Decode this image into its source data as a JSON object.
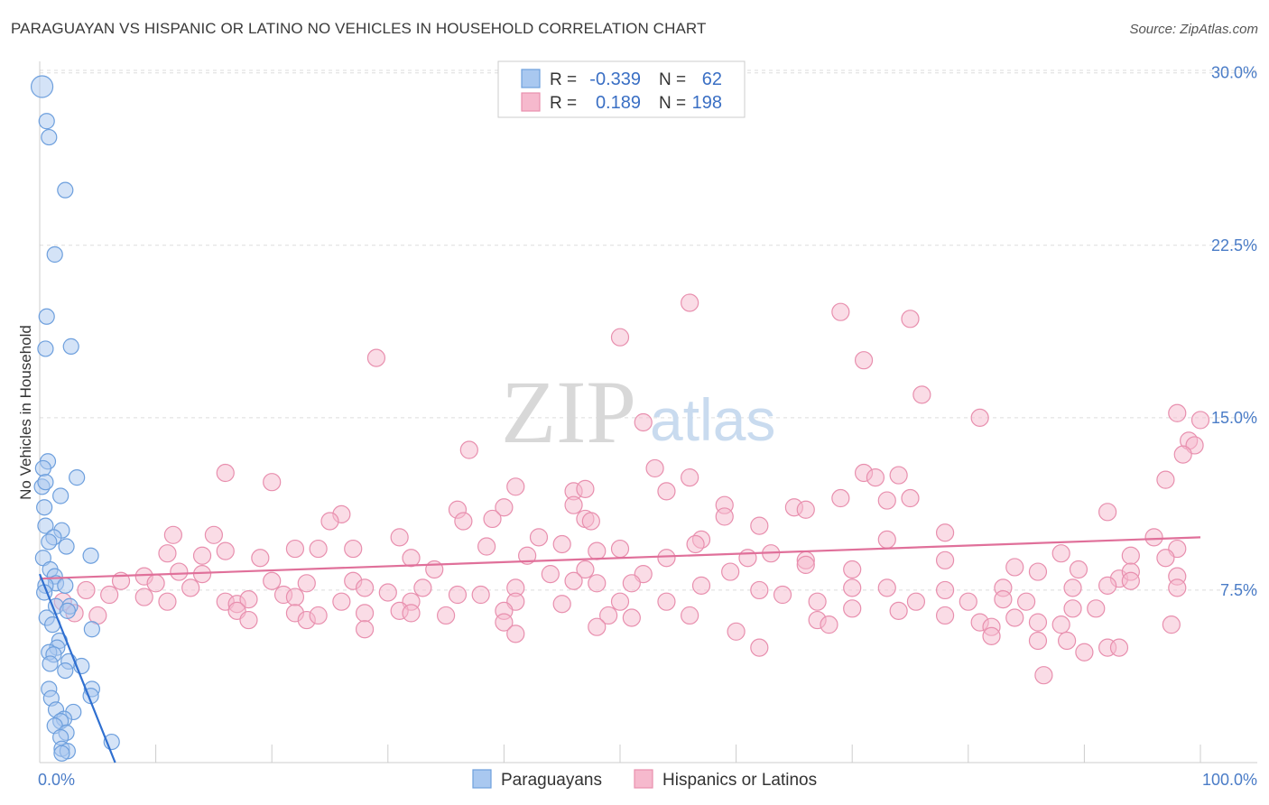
{
  "title": "PARAGUAYAN VS HISPANIC OR LATINO NO VEHICLES IN HOUSEHOLD CORRELATION CHART",
  "source": "Source: ZipAtlas.com",
  "watermark": {
    "part1": "ZIP",
    "part2": "atlas"
  },
  "colors": {
    "blue_fill": "#a9c8f0",
    "blue_stroke": "#6d9fdd",
    "blue_line": "#2f6fd0",
    "pink_fill": "#f6b9cd",
    "pink_stroke": "#e88fae",
    "pink_line": "#e0709a",
    "grid": "#dddddd",
    "tick_text": "#4a7cc7"
  },
  "legend": {
    "rows": [
      {
        "r_label": "R =",
        "r_value": "-0.339",
        "n_label": "N =",
        "n_value": "62"
      },
      {
        "r_label": "R =",
        "r_value": "0.189",
        "n_label": "N =",
        "n_value": "198"
      }
    ]
  },
  "chart_data": {
    "type": "scatter",
    "title": "PARAGUAYAN VS HISPANIC OR LATINO NO VEHICLES IN HOUSEHOLD CORRELATION CHART",
    "xlabel": "",
    "ylabel": "No Vehicles in Household",
    "xlim": [
      0,
      100
    ],
    "ylim": [
      0,
      30.5
    ],
    "x_tick_labels": [
      "0.0%",
      "100.0%"
    ],
    "y_ticks": [
      7.5,
      15.0,
      22.5,
      30.0
    ],
    "y_tick_labels": [
      "7.5%",
      "15.0%",
      "22.5%",
      "30.0%"
    ],
    "grid": true,
    "legend_position": "bottom-center",
    "series": [
      {
        "name": "Paraguayans",
        "color": "#a9c8f0",
        "R": -0.339,
        "N": 62,
        "trend": {
          "x0": 0,
          "y0": 8.2,
          "x1": 6.5,
          "y1": 0
        },
        "points": [
          [
            0.2,
            29.4
          ],
          [
            0.6,
            27.9
          ],
          [
            0.8,
            27.2
          ],
          [
            2.2,
            24.9
          ],
          [
            1.3,
            22.1
          ],
          [
            0.6,
            19.4
          ],
          [
            0.5,
            18.0
          ],
          [
            2.7,
            18.1
          ],
          [
            0.7,
            13.1
          ],
          [
            0.3,
            12.8
          ],
          [
            0.2,
            12.0
          ],
          [
            0.5,
            12.2
          ],
          [
            3.2,
            12.4
          ],
          [
            1.8,
            11.6
          ],
          [
            0.4,
            11.1
          ],
          [
            0.5,
            10.3
          ],
          [
            1.9,
            10.1
          ],
          [
            1.2,
            9.8
          ],
          [
            0.8,
            9.6
          ],
          [
            2.3,
            9.4
          ],
          [
            4.4,
            9.0
          ],
          [
            0.3,
            8.9
          ],
          [
            0.9,
            8.4
          ],
          [
            1.3,
            8.1
          ],
          [
            1.4,
            7.8
          ],
          [
            0.5,
            7.7
          ],
          [
            2.2,
            7.7
          ],
          [
            0.4,
            7.4
          ],
          [
            1.4,
            6.8
          ],
          [
            2.6,
            6.8
          ],
          [
            2.4,
            6.6
          ],
          [
            0.6,
            6.3
          ],
          [
            1.1,
            6.0
          ],
          [
            4.5,
            5.8
          ],
          [
            1.7,
            5.3
          ],
          [
            1.5,
            5.0
          ],
          [
            0.8,
            4.8
          ],
          [
            1.2,
            4.7
          ],
          [
            2.5,
            4.4
          ],
          [
            0.9,
            4.3
          ],
          [
            3.6,
            4.2
          ],
          [
            2.2,
            4.0
          ],
          [
            0.8,
            3.2
          ],
          [
            4.5,
            3.2
          ],
          [
            4.4,
            2.9
          ],
          [
            1.0,
            2.8
          ],
          [
            1.4,
            2.3
          ],
          [
            2.9,
            2.2
          ],
          [
            2.1,
            1.9
          ],
          [
            1.8,
            1.8
          ],
          [
            1.3,
            1.6
          ],
          [
            2.3,
            1.3
          ],
          [
            1.8,
            1.1
          ],
          [
            6.2,
            0.9
          ],
          [
            1.9,
            0.6
          ],
          [
            2.4,
            0.5
          ],
          [
            1.9,
            0.4
          ]
        ]
      },
      {
        "name": "Hispanics or Latinos",
        "color": "#f6b9cd",
        "R": 0.189,
        "N": 198,
        "trend": {
          "x0": 0,
          "y0": 8.0,
          "x1": 100,
          "y1": 9.8
        },
        "points": [
          [
            56.0,
            20.0
          ],
          [
            69.0,
            19.6
          ],
          [
            75.0,
            19.3
          ],
          [
            50.0,
            18.5
          ],
          [
            29.0,
            17.6
          ],
          [
            71.0,
            17.5
          ],
          [
            76.0,
            16.0
          ],
          [
            81.0,
            15.0
          ],
          [
            52.0,
            14.8
          ],
          [
            98.0,
            15.2
          ],
          [
            100.0,
            14.9
          ],
          [
            99.0,
            14.0
          ],
          [
            99.5,
            13.8
          ],
          [
            98.5,
            13.4
          ],
          [
            37.0,
            13.6
          ],
          [
            53.0,
            12.8
          ],
          [
            16.0,
            12.6
          ],
          [
            20.0,
            12.2
          ],
          [
            56.0,
            12.4
          ],
          [
            71.0,
            12.6
          ],
          [
            72.0,
            12.4
          ],
          [
            74.0,
            12.5
          ],
          [
            97.0,
            12.3
          ],
          [
            41.0,
            12.0
          ],
          [
            46.0,
            11.8
          ],
          [
            47.0,
            11.9
          ],
          [
            54.0,
            11.8
          ],
          [
            69.0,
            11.5
          ],
          [
            73.0,
            11.4
          ],
          [
            75.0,
            11.5
          ],
          [
            59.0,
            11.2
          ],
          [
            65.0,
            11.1
          ],
          [
            36.0,
            11.0
          ],
          [
            40.0,
            11.1
          ],
          [
            46.0,
            11.2
          ],
          [
            26.0,
            10.8
          ],
          [
            25.0,
            10.5
          ],
          [
            36.5,
            10.5
          ],
          [
            39.0,
            10.6
          ],
          [
            47.0,
            10.6
          ],
          [
            47.5,
            10.5
          ],
          [
            59.0,
            10.7
          ],
          [
            66.0,
            11.0
          ],
          [
            92.0,
            10.9
          ],
          [
            62.0,
            10.3
          ],
          [
            78.0,
            10.0
          ],
          [
            11.5,
            9.9
          ],
          [
            15.0,
            9.9
          ],
          [
            31.0,
            9.8
          ],
          [
            57.0,
            9.7
          ],
          [
            73.0,
            9.7
          ],
          [
            96.0,
            9.8
          ],
          [
            16.0,
            9.2
          ],
          [
            22.0,
            9.3
          ],
          [
            24.0,
            9.3
          ],
          [
            27.0,
            9.3
          ],
          [
            38.5,
            9.4
          ],
          [
            43.0,
            9.8
          ],
          [
            45.0,
            9.5
          ],
          [
            50.0,
            9.3
          ],
          [
            56.5,
            9.5
          ],
          [
            11.0,
            9.1
          ],
          [
            14.0,
            9.0
          ],
          [
            19.0,
            8.9
          ],
          [
            32.0,
            8.9
          ],
          [
            42.0,
            9.0
          ],
          [
            48.0,
            9.2
          ],
          [
            54.0,
            8.9
          ],
          [
            61.0,
            8.9
          ],
          [
            63.0,
            9.1
          ],
          [
            66.0,
            8.8
          ],
          [
            78.0,
            8.8
          ],
          [
            88.0,
            9.1
          ],
          [
            94.0,
            9.0
          ],
          [
            98.0,
            9.3
          ],
          [
            97.0,
            8.9
          ],
          [
            12.0,
            8.3
          ],
          [
            9.0,
            8.1
          ],
          [
            14.0,
            8.2
          ],
          [
            27.0,
            7.9
          ],
          [
            34.0,
            8.4
          ],
          [
            44.0,
            8.2
          ],
          [
            47.0,
            8.4
          ],
          [
            52.0,
            8.2
          ],
          [
            59.5,
            8.3
          ],
          [
            66.0,
            8.6
          ],
          [
            70.0,
            8.4
          ],
          [
            84.0,
            8.5
          ],
          [
            86.0,
            8.3
          ],
          [
            89.5,
            8.4
          ],
          [
            93.0,
            8.0
          ],
          [
            94.0,
            8.3
          ],
          [
            98.0,
            8.1
          ],
          [
            7.0,
            7.9
          ],
          [
            10.0,
            7.8
          ],
          [
            13.0,
            7.6
          ],
          [
            20.0,
            7.9
          ],
          [
            23.0,
            7.8
          ],
          [
            28.0,
            7.6
          ],
          [
            33.0,
            7.6
          ],
          [
            41.0,
            7.6
          ],
          [
            46.0,
            7.9
          ],
          [
            48.0,
            7.8
          ],
          [
            51.0,
            7.8
          ],
          [
            57.0,
            7.7
          ],
          [
            62.0,
            7.5
          ],
          [
            70.0,
            7.6
          ],
          [
            73.0,
            7.6
          ],
          [
            78.0,
            7.5
          ],
          [
            83.0,
            7.6
          ],
          [
            89.0,
            7.6
          ],
          [
            92.0,
            7.7
          ],
          [
            94.0,
            7.9
          ],
          [
            98.0,
            7.6
          ],
          [
            2.0,
            7.0
          ],
          [
            4.0,
            7.5
          ],
          [
            6.0,
            7.3
          ],
          [
            9.0,
            7.2
          ],
          [
            11.0,
            7.0
          ],
          [
            16.0,
            7.0
          ],
          [
            17.0,
            6.9
          ],
          [
            18.0,
            7.1
          ],
          [
            21.0,
            7.3
          ],
          [
            22.0,
            7.2
          ],
          [
            26.0,
            7.0
          ],
          [
            30.0,
            7.4
          ],
          [
            32.0,
            7.0
          ],
          [
            36.0,
            7.3
          ],
          [
            38.0,
            7.3
          ],
          [
            41.0,
            7.0
          ],
          [
            45.0,
            6.9
          ],
          [
            50.0,
            7.0
          ],
          [
            54.0,
            7.0
          ],
          [
            64.0,
            7.3
          ],
          [
            67.0,
            7.0
          ],
          [
            75.5,
            7.0
          ],
          [
            80.0,
            7.0
          ],
          [
            83.0,
            7.1
          ],
          [
            85.0,
            7.0
          ],
          [
            3.0,
            6.5
          ],
          [
            5.0,
            6.4
          ],
          [
            17.0,
            6.6
          ],
          [
            18.0,
            6.2
          ],
          [
            22.0,
            6.5
          ],
          [
            23.0,
            6.2
          ],
          [
            24.0,
            6.4
          ],
          [
            28.0,
            6.5
          ],
          [
            31.0,
            6.6
          ],
          [
            32.0,
            6.5
          ],
          [
            35.0,
            6.4
          ],
          [
            40.0,
            6.6
          ],
          [
            49.0,
            6.4
          ],
          [
            51.0,
            6.3
          ],
          [
            56.0,
            6.4
          ],
          [
            67.0,
            6.2
          ],
          [
            70.0,
            6.7
          ],
          [
            74.0,
            6.6
          ],
          [
            78.0,
            6.4
          ],
          [
            81.0,
            6.1
          ],
          [
            84.0,
            6.3
          ],
          [
            86.0,
            6.1
          ],
          [
            88.0,
            6.0
          ],
          [
            89.0,
            6.7
          ],
          [
            91.0,
            6.7
          ],
          [
            97.5,
            6.0
          ],
          [
            28.0,
            5.8
          ],
          [
            40.0,
            6.1
          ],
          [
            41.0,
            5.6
          ],
          [
            48.0,
            5.9
          ],
          [
            60.0,
            5.7
          ],
          [
            68.0,
            6.0
          ],
          [
            82.0,
            5.9
          ],
          [
            88.5,
            5.3
          ],
          [
            62.0,
            5.0
          ],
          [
            82.0,
            5.5
          ],
          [
            86.0,
            5.3
          ],
          [
            90.0,
            4.8
          ],
          [
            92.0,
            5.0
          ],
          [
            93.0,
            5.0
          ],
          [
            86.5,
            3.8
          ]
        ]
      }
    ]
  }
}
